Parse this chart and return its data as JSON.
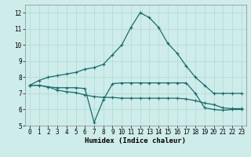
{
  "xlabel": "Humidex (Indice chaleur)",
  "background_color": "#ceecea",
  "grid_color": "#aed8d4",
  "line_color": "#1a6b6b",
  "xlim": [
    -0.5,
    23.5
  ],
  "ylim": [
    5,
    12.5
  ],
  "yticks": [
    5,
    6,
    7,
    8,
    9,
    10,
    11,
    12
  ],
  "xticks": [
    0,
    1,
    2,
    3,
    4,
    5,
    6,
    7,
    8,
    9,
    10,
    11,
    12,
    13,
    14,
    15,
    16,
    17,
    18,
    19,
    20,
    21,
    22,
    23
  ],
  "line1_x": [
    0,
    1,
    2,
    3,
    4,
    5,
    6,
    7,
    8,
    9,
    10,
    11,
    12,
    13,
    14,
    15,
    16,
    17,
    18,
    19,
    20,
    21,
    22,
    23
  ],
  "line1_y": [
    7.5,
    7.8,
    8.0,
    8.1,
    8.2,
    8.3,
    8.5,
    8.6,
    8.8,
    9.4,
    10.0,
    11.1,
    12.0,
    11.7,
    11.1,
    10.1,
    9.5,
    8.7,
    8.0,
    7.5,
    7.0,
    7.0,
    7.0,
    7.0
  ],
  "line2_x": [
    0,
    1,
    2,
    3,
    4,
    5,
    6,
    7,
    8,
    9,
    10,
    11,
    12,
    13,
    14,
    15,
    16,
    17,
    18,
    19,
    20,
    21,
    22,
    23
  ],
  "line2_y": [
    7.5,
    7.5,
    7.4,
    7.35,
    7.35,
    7.35,
    7.3,
    5.2,
    6.6,
    7.6,
    7.65,
    7.65,
    7.65,
    7.65,
    7.65,
    7.65,
    7.65,
    7.65,
    7.0,
    6.1,
    6.0,
    5.95,
    6.0,
    6.0
  ],
  "line3_x": [
    0,
    1,
    2,
    3,
    4,
    5,
    6,
    7,
    8,
    9,
    10,
    11,
    12,
    13,
    14,
    15,
    16,
    17,
    18,
    19,
    20,
    21,
    22,
    23
  ],
  "line3_y": [
    7.5,
    7.5,
    7.4,
    7.2,
    7.1,
    7.05,
    6.9,
    6.8,
    6.75,
    6.75,
    6.7,
    6.7,
    6.7,
    6.7,
    6.7,
    6.7,
    6.7,
    6.65,
    6.55,
    6.4,
    6.3,
    6.1,
    6.05,
    6.05
  ],
  "marker_size": 2.5,
  "line_width": 0.9,
  "font_size_label": 6.5,
  "font_size_tick": 5.5
}
